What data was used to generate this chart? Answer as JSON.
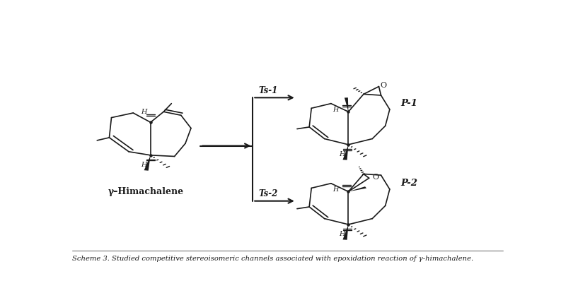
{
  "background_color": "#ffffff",
  "fig_width": 7.93,
  "fig_height": 4.32,
  "dpi": 100,
  "caption": "Scheme 3. Studied competitive stereoisomeric channels associated with epoxidation reaction of γ-himachalene.",
  "label_gamma_himachalene": "γ–Himachalene",
  "label_ts1": "Ts-1",
  "label_ts2": "Ts-2",
  "label_p1": "P-1",
  "label_p2": "P-2",
  "line_color": "#1a1a1a"
}
